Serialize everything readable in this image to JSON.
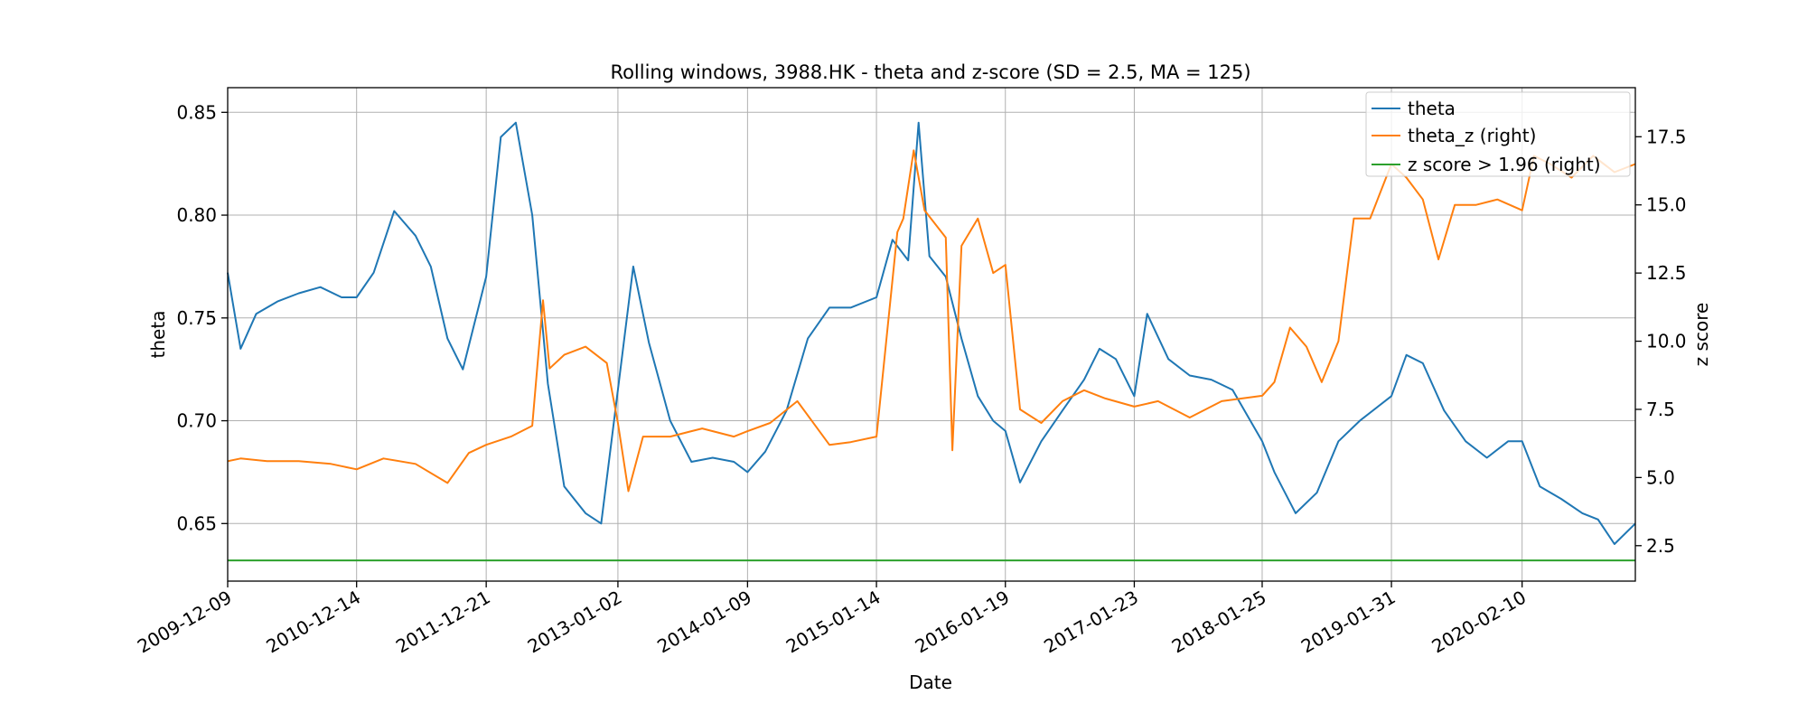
{
  "chart_data": {
    "type": "line",
    "title": "Rolling windows, 3988.HK - theta and z-score (SD = 2.5, MA = 125)",
    "xlabel": "Date",
    "ylabel_left": "theta",
    "ylabel_right": "z score",
    "grid": true,
    "legend_position": "top-right",
    "x_tick_labels": [
      "2009-12-09",
      "2010-12-14",
      "2011-12-21",
      "2013-01-02",
      "2014-01-09",
      "2015-01-14",
      "2016-01-19",
      "2017-01-23",
      "2018-01-25",
      "2019-01-31",
      "2020-02-10"
    ],
    "x_range": [
      "2009-12-09",
      "2020-12-31"
    ],
    "y_left_ticks": [
      "0.65",
      "0.70",
      "0.75",
      "0.80",
      "0.85"
    ],
    "y_left_range": [
      0.622,
      0.862
    ],
    "y_right_ticks": [
      "2.5",
      "5.0",
      "7.5",
      "10.0",
      "12.5",
      "15.0",
      "17.5"
    ],
    "y_right_range": [
      1.2,
      19.3
    ],
    "colors": {
      "theta": "#1f77b4",
      "theta_z": "#ff7f0e",
      "threshold": "#2ca02c"
    },
    "series": [
      {
        "name": "theta",
        "axis": "left",
        "x": [
          "2009-12-09",
          "2010-01-15",
          "2010-03-01",
          "2010-05-01",
          "2010-07-01",
          "2010-09-01",
          "2010-11-01",
          "2010-12-14",
          "2011-02-01",
          "2011-04-01",
          "2011-06-01",
          "2011-07-15",
          "2011-09-01",
          "2011-10-15",
          "2011-12-21",
          "2012-02-01",
          "2012-03-15",
          "2012-05-01",
          "2012-06-15",
          "2012-08-01",
          "2012-10-01",
          "2012-11-15",
          "2013-01-02",
          "2013-02-15",
          "2013-04-01",
          "2013-06-01",
          "2013-08-01",
          "2013-10-01",
          "2013-12-01",
          "2014-01-09",
          "2014-03-01",
          "2014-05-01",
          "2014-07-01",
          "2014-09-01",
          "2014-11-01",
          "2015-01-14",
          "2015-03-01",
          "2015-04-15",
          "2015-05-15",
          "2015-06-15",
          "2015-08-01",
          "2015-09-15",
          "2015-11-01",
          "2015-12-15",
          "2016-01-19",
          "2016-03-01",
          "2016-05-01",
          "2016-07-01",
          "2016-09-01",
          "2016-10-15",
          "2016-12-01",
          "2017-01-23",
          "2017-03-01",
          "2017-05-01",
          "2017-07-01",
          "2017-09-01",
          "2017-11-01",
          "2018-01-25",
          "2018-03-01",
          "2018-05-01",
          "2018-07-01",
          "2018-09-01",
          "2018-11-01",
          "2019-01-31",
          "2019-03-15",
          "2019-05-01",
          "2019-07-01",
          "2019-09-01",
          "2019-11-01",
          "2020-01-01",
          "2020-02-10",
          "2020-04-01",
          "2020-06-01",
          "2020-08-01",
          "2020-09-15",
          "2020-11-01",
          "2020-12-31"
        ],
        "values": [
          0.772,
          0.735,
          0.752,
          0.758,
          0.762,
          0.765,
          0.76,
          0.76,
          0.772,
          0.802,
          0.79,
          0.775,
          0.74,
          0.725,
          0.77,
          0.838,
          0.845,
          0.8,
          0.718,
          0.668,
          0.655,
          0.65,
          0.715,
          0.775,
          0.738,
          0.7,
          0.68,
          0.682,
          0.68,
          0.675,
          0.685,
          0.705,
          0.74,
          0.755,
          0.755,
          0.76,
          0.788,
          0.778,
          0.845,
          0.78,
          0.77,
          0.74,
          0.712,
          0.7,
          0.695,
          0.67,
          0.69,
          0.705,
          0.72,
          0.735,
          0.73,
          0.712,
          0.752,
          0.73,
          0.722,
          0.72,
          0.715,
          0.69,
          0.675,
          0.655,
          0.665,
          0.69,
          0.7,
          0.712,
          0.732,
          0.728,
          0.705,
          0.69,
          0.682,
          0.69,
          0.69,
          0.668,
          0.662,
          0.655,
          0.652,
          0.64,
          0.65
        ]
      },
      {
        "name": "theta_z (right)",
        "axis": "right",
        "x": [
          "2009-12-09",
          "2010-01-15",
          "2010-04-01",
          "2010-07-01",
          "2010-10-01",
          "2010-12-14",
          "2011-03-01",
          "2011-06-01",
          "2011-09-01",
          "2011-11-01",
          "2011-12-21",
          "2012-03-01",
          "2012-05-01",
          "2012-06-01",
          "2012-06-20",
          "2012-08-01",
          "2012-10-01",
          "2012-12-01",
          "2013-01-02",
          "2013-02-01",
          "2013-03-15",
          "2013-06-01",
          "2013-09-01",
          "2013-12-01",
          "2014-01-09",
          "2014-03-15",
          "2014-06-01",
          "2014-09-01",
          "2014-11-01",
          "2015-01-14",
          "2015-03-15",
          "2015-04-01",
          "2015-05-01",
          "2015-06-01",
          "2015-08-01",
          "2015-08-20",
          "2015-09-15",
          "2015-11-01",
          "2015-12-15",
          "2016-01-19",
          "2016-03-01",
          "2016-05-01",
          "2016-07-01",
          "2016-09-01",
          "2016-11-01",
          "2017-01-23",
          "2017-04-01",
          "2017-07-01",
          "2017-10-01",
          "2018-01-25",
          "2018-03-01",
          "2018-04-15",
          "2018-06-01",
          "2018-07-15",
          "2018-09-01",
          "2018-10-15",
          "2018-12-01",
          "2019-01-31",
          "2019-03-15",
          "2019-05-01",
          "2019-06-15",
          "2019-08-01",
          "2019-10-01",
          "2019-12-01",
          "2020-02-10",
          "2020-03-15",
          "2020-05-01",
          "2020-07-01",
          "2020-09-01",
          "2020-11-01",
          "2020-12-31"
        ],
        "values": [
          5.6,
          5.7,
          5.6,
          5.6,
          5.5,
          5.3,
          5.7,
          5.5,
          4.8,
          5.9,
          6.2,
          6.5,
          6.9,
          11.5,
          9.0,
          9.5,
          9.8,
          9.2,
          7.0,
          4.5,
          6.5,
          6.5,
          6.8,
          6.5,
          6.7,
          7.0,
          7.8,
          6.2,
          6.3,
          6.5,
          14.0,
          14.5,
          17.0,
          14.8,
          13.8,
          6.0,
          13.5,
          14.5,
          12.5,
          12.8,
          7.5,
          7.0,
          7.8,
          8.2,
          7.9,
          7.6,
          7.8,
          7.2,
          7.8,
          8.0,
          8.5,
          10.5,
          9.8,
          8.5,
          10.0,
          14.5,
          14.5,
          16.5,
          16.0,
          15.2,
          13.0,
          15.0,
          15.0,
          15.2,
          14.8,
          16.8,
          16.5,
          16.0,
          16.8,
          16.2,
          16.5
        ]
      },
      {
        "name": "z score > 1.96 (right)",
        "axis": "right",
        "x": [
          "2009-12-09",
          "2020-12-31"
        ],
        "values": [
          1.96,
          1.96
        ]
      }
    ]
  }
}
